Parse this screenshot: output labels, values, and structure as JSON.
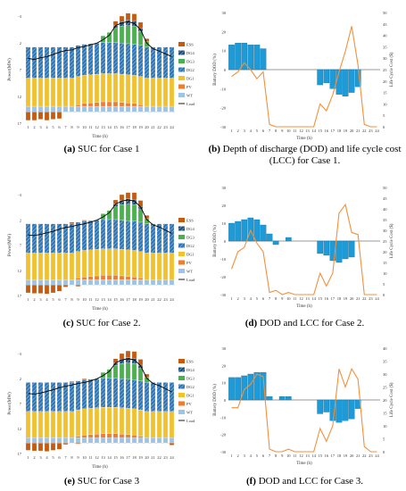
{
  "captions": [
    {
      "letter": "(a)",
      "text": " SUC for Case 1"
    },
    {
      "letter": "(b)",
      "text": " Depth of discharge (DOD) and life cycle cost (LCC) for Case 1."
    },
    {
      "letter": "(c)",
      "text": " SUC for Case 2."
    },
    {
      "letter": "(d)",
      "text": " DOD and LCC for Case 2."
    },
    {
      "letter": "(e)",
      "text": " SUC for Case 3"
    },
    {
      "letter": "(f)",
      "text": " DOD and LCC for Case 3."
    }
  ],
  "colors": {
    "ess": "#c55a11",
    "dg4": "#1f4e79",
    "dg3": "#4caf50",
    "dg2": "#2e75b6",
    "dg1": "#f2c12e",
    "pv": "#ed7d31",
    "wt": "#9dc3e6",
    "load": "#000000",
    "dod": "#1e9bd7",
    "lcc": "#f4903a"
  },
  "chart_data": [
    {
      "type": "bar",
      "xlabel": "Time (h)",
      "ylabel": "Power(MW)",
      "ylim": [
        -2,
        17
      ],
      "yticks": [
        "-3",
        "2",
        "7",
        "12",
        "17"
      ],
      "categories": [
        "1",
        "2",
        "3",
        "4",
        "5",
        "6",
        "7",
        "8",
        "9",
        "10",
        "11",
        "12",
        "13",
        "14",
        "15",
        "16",
        "17",
        "18",
        "19",
        "20",
        "21",
        "22",
        "23",
        "24"
      ],
      "legend": [
        "ESS",
        "DG4",
        "DG3",
        "DG2",
        "DG1",
        "PV",
        "WT",
        "Load"
      ],
      "series": [
        {
          "name": "WT",
          "values": [
            1,
            1,
            1,
            1,
            1,
            1,
            1,
            1,
            1,
            1,
            1,
            1,
            1,
            1,
            1,
            1,
            1,
            1,
            1,
            1,
            1,
            1,
            1,
            1
          ]
        },
        {
          "name": "PV",
          "values": [
            0,
            0,
            0,
            0,
            0,
            0,
            0,
            0,
            0.3,
            0.5,
            0.6,
            0.7,
            0.8,
            0.8,
            0.8,
            0.7,
            0.6,
            0.5,
            0.3,
            0,
            0,
            0,
            0,
            0
          ]
        },
        {
          "name": "DG1",
          "values": [
            5,
            5,
            5,
            5,
            5,
            5,
            5,
            5,
            5,
            5,
            5,
            5,
            5,
            5,
            5,
            5,
            5,
            5,
            5,
            5,
            5,
            5,
            5,
            5
          ]
        },
        {
          "name": "DG2",
          "values": [
            5.5,
            5.5,
            5.5,
            5.5,
            5.5,
            5.5,
            5.5,
            5.5,
            5.5,
            5.5,
            5.5,
            5.5,
            5.5,
            5.5,
            5.5,
            5.5,
            5.5,
            5.5,
            5.5,
            5.5,
            5.5,
            5.5,
            5.5,
            5.5
          ]
        },
        {
          "name": "DG3",
          "values": [
            0,
            0,
            0,
            0,
            0,
            0,
            0,
            0,
            0,
            0,
            0,
            0,
            1.2,
            1.8,
            2.5,
            3,
            3.2,
            3.2,
            2.5,
            1,
            0,
            0,
            0,
            0
          ]
        },
        {
          "name": "DG4",
          "values": [
            0,
            0,
            0,
            0,
            0,
            0,
            0,
            0,
            0,
            0,
            0,
            0,
            0,
            0,
            0.5,
            0.8,
            1,
            1,
            0.6,
            0,
            0,
            0,
            0,
            0
          ]
        },
        {
          "name": "ESS",
          "values": [
            -1.5,
            -1.5,
            -1.3,
            -1.5,
            -1.3,
            -1.2,
            0,
            0,
            0,
            0,
            0,
            0,
            0,
            0,
            0.8,
            1,
            1.2,
            1.2,
            1,
            0.5,
            0,
            0,
            0,
            0
          ]
        }
      ],
      "load": [
        9.5,
        9.3,
        9.6,
        9.8,
        10.2,
        10.6,
        10.9,
        11.0,
        11.4,
        11.6,
        11.9,
        12.2,
        12.8,
        13.6,
        15.3,
        15.8,
        16.0,
        15.7,
        14.6,
        12.2,
        11.2,
        10.8,
        10.3,
        9.8
      ]
    },
    {
      "type": "bar",
      "xlabel": "Time (h)",
      "ylabel": "Battery DOD (%)",
      "y2label": "Life Cycle Cost ($)",
      "ylim": [
        -30,
        30
      ],
      "yticks": [
        "30",
        "20",
        "10",
        "0",
        "-10",
        "-20",
        "-30"
      ],
      "y2lim": [
        0,
        50
      ],
      "y2ticks": [
        "50",
        "45",
        "40",
        "35",
        "30",
        "25",
        "20",
        "15",
        "10",
        "5",
        "0"
      ],
      "categories": [
        "1",
        "2",
        "3",
        "4",
        "5",
        "6",
        "7",
        "8",
        "9",
        "10",
        "11",
        "12",
        "13",
        "14",
        "15",
        "16",
        "17",
        "18",
        "19",
        "20",
        "21",
        "22",
        "23",
        "24"
      ],
      "dod": [
        13,
        14,
        14,
        13,
        13,
        11,
        0,
        0,
        0,
        0,
        0,
        0,
        0,
        0,
        -8,
        -7,
        -10,
        -13,
        -14,
        -12,
        -9,
        0,
        0,
        0
      ],
      "lcc": [
        22,
        24,
        28,
        25,
        21,
        24,
        1,
        0,
        0,
        0,
        0,
        0,
        0,
        0,
        10,
        7,
        14,
        24,
        33,
        44,
        27,
        1,
        0,
        0
      ]
    },
    {
      "type": "bar",
      "xlabel": "Time (h)",
      "ylabel": "Power(MW)",
      "ylim": [
        -2,
        17
      ],
      "yticks": [
        "-3",
        "2",
        "7",
        "12",
        "17"
      ],
      "categories": [
        "1",
        "2",
        "3",
        "4",
        "5",
        "6",
        "7",
        "8",
        "9",
        "10",
        "11",
        "12",
        "13",
        "14",
        "15",
        "16",
        "17",
        "18",
        "19",
        "20",
        "21",
        "22",
        "23",
        "24"
      ],
      "legend": [
        "ESS",
        "DG4",
        "DG3",
        "DG2",
        "DG1",
        "PV",
        "WT",
        "Load"
      ],
      "series": [
        {
          "name": "WT",
          "values": [
            1,
            1,
            1,
            1,
            1,
            1,
            1,
            1,
            1,
            1,
            1,
            1,
            1,
            1,
            1,
            1,
            1,
            1,
            1,
            1,
            1,
            1,
            1,
            1
          ]
        },
        {
          "name": "PV",
          "values": [
            0,
            0,
            0,
            0,
            0,
            0,
            0,
            0,
            0.3,
            0.5,
            0.6,
            0.7,
            0.8,
            0.8,
            0.8,
            0.7,
            0.6,
            0.5,
            0.3,
            0,
            0,
            0,
            0,
            0
          ]
        },
        {
          "name": "DG1",
          "values": [
            5,
            5,
            5,
            5,
            5,
            5,
            5,
            5,
            5,
            5,
            5,
            5,
            5,
            5,
            5,
            5,
            5,
            5,
            5,
            5,
            5,
            5,
            5,
            5
          ]
        },
        {
          "name": "DG2",
          "values": [
            5.5,
            5.5,
            5.5,
            5.5,
            5.5,
            5.5,
            5.5,
            5.5,
            5.5,
            5.5,
            5.5,
            5.5,
            5.5,
            5.5,
            5.5,
            5.5,
            5.5,
            5.5,
            5.5,
            5.5,
            5.5,
            5.5,
            5.5,
            5.5
          ]
        },
        {
          "name": "DG3",
          "values": [
            0,
            0,
            0,
            0,
            0,
            0,
            0,
            0,
            0,
            0,
            0,
            0,
            1.1,
            1.7,
            2.4,
            2.9,
            3.1,
            3.1,
            2.4,
            1,
            0,
            0,
            0,
            0
          ]
        },
        {
          "name": "DG4",
          "values": [
            0,
            0,
            0,
            0,
            0,
            0,
            0,
            0,
            0,
            0,
            0,
            0,
            0,
            0,
            0.5,
            0.8,
            1,
            1,
            0.6,
            0,
            0,
            0,
            0,
            0
          ]
        },
        {
          "name": "ESS",
          "values": [
            -1.5,
            -1.6,
            -1.6,
            -1.7,
            -1.5,
            -1.2,
            -0.4,
            0.3,
            -0.3,
            0.2,
            0,
            0,
            0,
            0,
            0.8,
            1.1,
            1.2,
            1.3,
            1.1,
            0.6,
            0,
            0,
            0,
            0
          ]
        }
      ],
      "load": [
        9.4,
        9.3,
        9.5,
        9.8,
        10.1,
        10.5,
        10.8,
        11.0,
        11.3,
        11.5,
        11.8,
        12.2,
        12.8,
        13.6,
        15.2,
        15.8,
        16.0,
        15.8,
        14.7,
        12.3,
        11.3,
        10.9,
        10.3,
        9.7
      ]
    },
    {
      "type": "bar",
      "xlabel": "Time (h)",
      "ylabel": "Battery DOD (%)",
      "y2label": "Life Cycle Cost ($)",
      "ylim": [
        -30,
        30
      ],
      "yticks": [
        "30",
        "20",
        "10",
        "0",
        "-10",
        "-20",
        "-30"
      ],
      "y2lim": [
        0,
        50
      ],
      "y2ticks": [
        "50",
        "45",
        "40",
        "35",
        "30",
        "25",
        "20",
        "15",
        "10",
        "5",
        "0"
      ],
      "categories": [
        "1",
        "2",
        "3",
        "4",
        "5",
        "6",
        "7",
        "8",
        "9",
        "10",
        "11",
        "12",
        "13",
        "14",
        "15",
        "16",
        "17",
        "18",
        "19",
        "20",
        "21",
        "22",
        "23",
        "24"
      ],
      "dod": [
        10,
        11,
        12,
        13,
        12,
        9,
        4,
        -2,
        0,
        2,
        0,
        0,
        0,
        0,
        -7,
        -8,
        -11,
        -12,
        -10,
        -9,
        0,
        0,
        0,
        0
      ],
      "lcc": [
        12,
        20,
        22,
        30,
        24,
        20,
        1,
        2,
        0,
        1,
        0,
        0,
        0,
        0,
        10,
        4,
        10,
        38,
        42,
        29,
        28,
        0,
        0,
        0
      ]
    },
    {
      "type": "bar",
      "xlabel": "Time (h)",
      "ylabel": "Power(MW)",
      "ylim": [
        -2,
        17
      ],
      "yticks": [
        "-3",
        "2",
        "7",
        "12",
        "17"
      ],
      "categories": [
        "1",
        "2",
        "3",
        "4",
        "5",
        "6",
        "7",
        "8",
        "9",
        "10",
        "11",
        "12",
        "13",
        "14",
        "15",
        "16",
        "17",
        "18",
        "19",
        "20",
        "21",
        "22",
        "23",
        "24"
      ],
      "legend": [
        "ESS",
        "DG4",
        "DG3",
        "DG2",
        "DG1",
        "PV",
        "WT",
        "Load"
      ],
      "series": [
        {
          "name": "WT",
          "values": [
            1,
            1,
            1,
            1,
            1,
            1,
            1,
            1,
            1,
            1,
            1,
            1,
            1,
            1,
            1,
            1,
            1,
            1,
            1,
            1,
            1,
            1,
            1,
            1
          ]
        },
        {
          "name": "PV",
          "values": [
            0,
            0,
            0,
            0,
            0,
            0,
            0,
            0,
            0.3,
            0.5,
            0.6,
            0.7,
            0.8,
            0.8,
            0.8,
            0.7,
            0.6,
            0.5,
            0.3,
            0,
            0,
            0,
            0,
            0
          ]
        },
        {
          "name": "DG1",
          "values": [
            5,
            5,
            5,
            5,
            5,
            5,
            5,
            5,
            5,
            5,
            5,
            5,
            5,
            5,
            5,
            5,
            5,
            5,
            5,
            5,
            5,
            5,
            5,
            5
          ]
        },
        {
          "name": "DG2",
          "values": [
            5.5,
            5.5,
            5.5,
            5.5,
            5.5,
            5.5,
            5.5,
            5.5,
            5.5,
            5.5,
            5.5,
            5.5,
            5.5,
            5.5,
            5.5,
            5.5,
            5.5,
            5.5,
            5.5,
            5.5,
            5.5,
            5.5,
            5.5,
            5.5
          ]
        },
        {
          "name": "DG3",
          "values": [
            0,
            0,
            0,
            0,
            0,
            0,
            0,
            0,
            0,
            0,
            0,
            0,
            1.1,
            1.7,
            2.4,
            2.9,
            3.1,
            3.1,
            2.4,
            1,
            0,
            0,
            0,
            0
          ]
        },
        {
          "name": "DG4",
          "values": [
            0,
            0,
            0,
            0,
            0,
            0,
            0,
            0,
            0,
            0,
            0,
            0,
            0,
            0,
            0.5,
            0.8,
            1,
            1,
            0.6,
            0,
            0,
            0,
            0,
            0
          ]
        },
        {
          "name": "ESS",
          "values": [
            -1.4,
            -1.5,
            -1.5,
            -1.6,
            -1.4,
            -1.2,
            -0.3,
            0.2,
            -0.2,
            0.2,
            0,
            0,
            0,
            0,
            0.8,
            1.1,
            1.3,
            1.3,
            1.1,
            0.6,
            0,
            0,
            0,
            -0.4
          ]
        }
      ],
      "load": [
        9.4,
        9.3,
        9.5,
        9.8,
        10.1,
        10.5,
        10.8,
        11.0,
        11.3,
        11.5,
        11.8,
        12.2,
        12.8,
        13.6,
        15.2,
        15.8,
        16.0,
        15.8,
        14.7,
        12.3,
        11.3,
        10.9,
        10.3,
        9.7
      ]
    },
    {
      "type": "bar",
      "xlabel": "Time (h)",
      "ylabel": "Battery DOD (%)",
      "y2label": "Life Cycle Cost ($)",
      "ylim": [
        -30,
        30
      ],
      "yticks": [
        "30",
        "20",
        "10",
        "0",
        "-10",
        "-20",
        "-30"
      ],
      "y2lim": [
        0,
        40
      ],
      "y2ticks": [
        "40",
        "35",
        "30",
        "25",
        "20",
        "15",
        "10",
        "5",
        "0"
      ],
      "categories": [
        "1",
        "2",
        "3",
        "4",
        "5",
        "6",
        "7",
        "8",
        "9",
        "10",
        "11",
        "12",
        "13",
        "14",
        "15",
        "16",
        "17",
        "18",
        "19",
        "20",
        "21",
        "22",
        "23",
        "24"
      ],
      "dod": [
        13,
        13,
        14,
        15,
        16,
        16,
        2,
        0,
        2,
        2,
        0,
        0,
        0,
        0,
        -8,
        -7,
        -12,
        -13,
        -12,
        -11,
        -5,
        0,
        0,
        0
      ],
      "lcc": [
        17,
        17,
        24,
        26,
        30,
        29,
        1,
        0,
        0,
        1,
        0,
        0,
        0,
        0,
        9,
        4,
        10,
        32,
        25,
        32,
        28,
        2,
        0,
        0
      ]
    }
  ]
}
